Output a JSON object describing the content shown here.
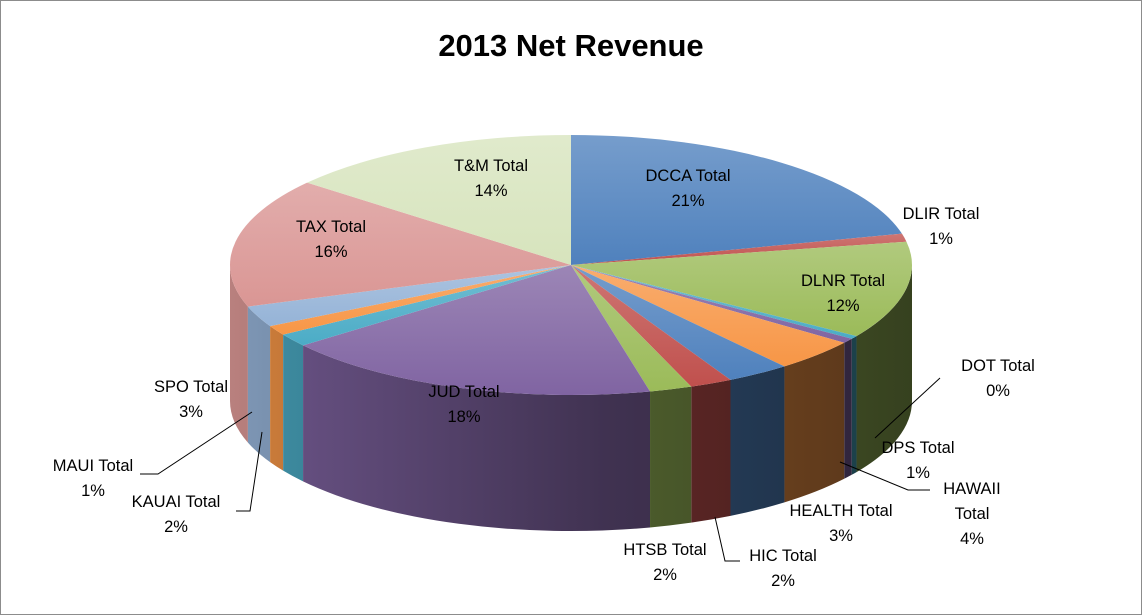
{
  "chart_data": {
    "type": "pie",
    "title": "2013 Net Revenue",
    "slices": [
      {
        "label": "DCCA Total",
        "value": 21,
        "pct_label": "21%",
        "color": "#4f81bd"
      },
      {
        "label": "DLIR Total",
        "value": 1,
        "pct_label": "1%",
        "color": "#c0504d"
      },
      {
        "label": "DLNR Total",
        "value": 12,
        "pct_label": "12%",
        "color": "#9bbb59"
      },
      {
        "label": "DOT Total",
        "value": 0.4,
        "pct_label": "0%",
        "color": "#4bacc6"
      },
      {
        "label": "DPS Total",
        "value": 0.6,
        "pct_label": "1%",
        "color": "#8064a2"
      },
      {
        "label": "HAWAII Total",
        "value": 4,
        "pct_label": "4%",
        "color": "#f79646"
      },
      {
        "label": "HEALTH Total",
        "value": 3,
        "pct_label": "3%",
        "color": "#4f81bd"
      },
      {
        "label": "HIC Total",
        "value": 2,
        "pct_label": "2%",
        "color": "#c0504d"
      },
      {
        "label": "HTSB Total",
        "value": 2,
        "pct_label": "2%",
        "color": "#9bbb59"
      },
      {
        "label": "JUD Total",
        "value": 18,
        "pct_label": "18%",
        "color": "#8064a2"
      },
      {
        "label": "KAUAI Total",
        "value": 1.6,
        "pct_label": "2%",
        "color": "#4bacc6"
      },
      {
        "label": "MAUI Total",
        "value": 1.2,
        "pct_label": "1%",
        "color": "#f79646"
      },
      {
        "label": "SPO Total",
        "value": 2.6,
        "pct_label": "3%",
        "color": "#95b3d7"
      },
      {
        "label": "TAX Total",
        "value": 16,
        "pct_label": "16%",
        "color": "#da9694"
      },
      {
        "label": "T&M Total",
        "value": 14,
        "pct_label": "14%",
        "color": "#d7e4bd"
      }
    ]
  }
}
